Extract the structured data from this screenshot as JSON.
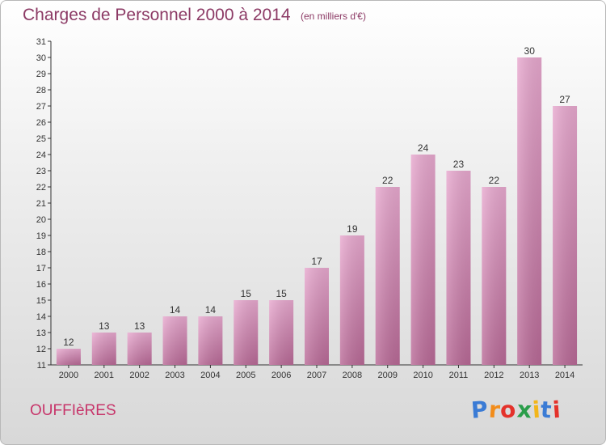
{
  "header": {
    "title": "Charges de Personnel 2000 à 2014",
    "subtitle": "(en milliers d'€)"
  },
  "commune": "OUFFIèRES",
  "logo": {
    "letters": [
      "P",
      "r",
      "o",
      "x",
      "i",
      "t",
      "i"
    ],
    "colors": [
      "#3a7bd5",
      "#f28c1a",
      "#e4322b",
      "#2a9d4a",
      "#f2b61a",
      "#3a7bd5",
      "#e4322b"
    ]
  },
  "colors": {
    "bar_top": "#e8a9cf",
    "bar_bottom": "#b96a97",
    "title": "#8c3a65",
    "commune": "#c7356a"
  },
  "chart_data": {
    "type": "bar",
    "title": "Charges de Personnel 2000 à 2014",
    "subtitle": "(en milliers d'€)",
    "categories": [
      "2000",
      "2001",
      "2002",
      "2003",
      "2004",
      "2005",
      "2006",
      "2007",
      "2008",
      "2009",
      "2010",
      "2011",
      "2012",
      "2013",
      "2014"
    ],
    "values": [
      12,
      13,
      13,
      14,
      14,
      15,
      15,
      17,
      19,
      22,
      24,
      23,
      22,
      30,
      27
    ],
    "ylim": [
      11,
      31
    ],
    "yticks": [
      11,
      12,
      13,
      14,
      15,
      16,
      17,
      18,
      19,
      20,
      21,
      22,
      23,
      24,
      25,
      26,
      27,
      28,
      29,
      30,
      31
    ],
    "grid": false,
    "data_labels": true
  }
}
